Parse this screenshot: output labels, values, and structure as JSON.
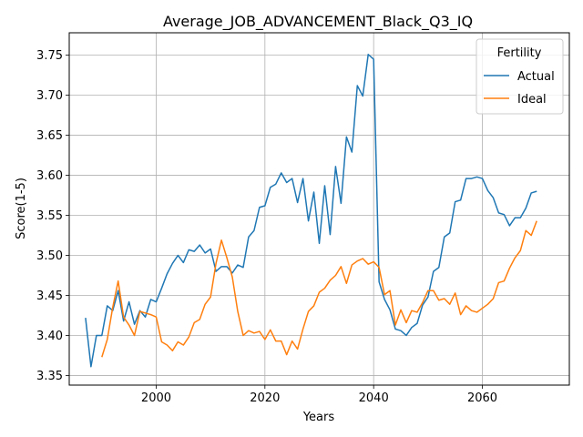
{
  "chart_data": {
    "type": "line",
    "title": "Average_JOB_ADVANCEMENT_Black_Q3_IQ",
    "xlabel": "Years",
    "ylabel": "Score(1-5)",
    "xlim": [
      1984,
      2076
    ],
    "ylim": [
      3.338,
      3.778
    ],
    "xticks": [
      2000,
      2020,
      2040,
      2060
    ],
    "yticks": [
      3.35,
      3.4,
      3.45,
      3.5,
      3.55,
      3.6,
      3.65,
      3.7,
      3.75
    ],
    "ytick_labels": [
      "3.35",
      "3.40",
      "3.45",
      "3.50",
      "3.55",
      "3.60",
      "3.65",
      "3.70",
      "3.75"
    ],
    "grid": true,
    "legend": {
      "title": "Fertility",
      "position": "top-right"
    },
    "series": [
      {
        "name": "Actual",
        "color": "#1f77b4",
        "x": [
          1987,
          1988,
          1989,
          1990,
          1991,
          1992,
          1993,
          1994,
          1995,
          1996,
          1997,
          1998,
          1999,
          2000,
          2001,
          2002,
          2003,
          2004,
          2005,
          2006,
          2007,
          2008,
          2009,
          2010,
          2011,
          2012,
          2013,
          2014,
          2015,
          2016,
          2017,
          2018,
          2019,
          2020,
          2021,
          2022,
          2023,
          2024,
          2025,
          2026,
          2027,
          2028,
          2029,
          2030,
          2031,
          2032,
          2033,
          2034,
          2035,
          2036,
          2037,
          2038,
          2039,
          2040,
          2041,
          2042,
          2043,
          2044,
          2045,
          2046,
          2047,
          2048,
          2049,
          2050,
          2051,
          2052,
          2053,
          2054,
          2055,
          2056,
          2057,
          2058,
          2059,
          2060,
          2061,
          2062,
          2063,
          2064,
          2065,
          2066,
          2067,
          2068,
          2069,
          2070
        ],
        "values": [
          3.422,
          3.361,
          3.4,
          3.4,
          3.437,
          3.431,
          3.456,
          3.418,
          3.442,
          3.414,
          3.431,
          3.423,
          3.445,
          3.442,
          3.459,
          3.477,
          3.49,
          3.5,
          3.491,
          3.507,
          3.505,
          3.513,
          3.503,
          3.508,
          3.48,
          3.486,
          3.486,
          3.478,
          3.488,
          3.485,
          3.523,
          3.531,
          3.56,
          3.562,
          3.585,
          3.589,
          3.603,
          3.591,
          3.596,
          3.566,
          3.596,
          3.543,
          3.579,
          3.515,
          3.587,
          3.526,
          3.611,
          3.565,
          3.648,
          3.629,
          3.712,
          3.699,
          3.751,
          3.745,
          3.467,
          3.445,
          3.432,
          3.408,
          3.406,
          3.4,
          3.41,
          3.415,
          3.438,
          3.448,
          3.48,
          3.485,
          3.523,
          3.528,
          3.567,
          3.569,
          3.596,
          3.596,
          3.598,
          3.596,
          3.581,
          3.572,
          3.553,
          3.551,
          3.537,
          3.547,
          3.547,
          3.559,
          3.578,
          3.58
        ]
      },
      {
        "name": "Ideal",
        "color": "#ff7f0e",
        "x": [
          1990,
          1991,
          1992,
          1993,
          1994,
          1995,
          1996,
          1997,
          1998,
          1999,
          2000,
          2001,
          2002,
          2003,
          2004,
          2005,
          2006,
          2007,
          2008,
          2009,
          2010,
          2011,
          2012,
          2013,
          2014,
          2015,
          2016,
          2017,
          2018,
          2019,
          2020,
          2021,
          2022,
          2023,
          2024,
          2025,
          2026,
          2027,
          2028,
          2029,
          2030,
          2031,
          2032,
          2033,
          2034,
          2035,
          2036,
          2037,
          2038,
          2039,
          2040,
          2041,
          2042,
          2043,
          2044,
          2045,
          2046,
          2047,
          2048,
          2049,
          2050,
          2051,
          2052,
          2053,
          2054,
          2055,
          2056,
          2057,
          2058,
          2059,
          2060,
          2061,
          2062,
          2063,
          2064,
          2065,
          2066,
          2067,
          2068,
          2069,
          2070
        ],
        "values": [
          3.373,
          3.395,
          3.435,
          3.468,
          3.423,
          3.413,
          3.4,
          3.43,
          3.428,
          3.426,
          3.423,
          3.392,
          3.388,
          3.381,
          3.392,
          3.388,
          3.398,
          3.416,
          3.42,
          3.439,
          3.448,
          3.49,
          3.519,
          3.497,
          3.473,
          3.43,
          3.4,
          3.406,
          3.403,
          3.405,
          3.395,
          3.407,
          3.393,
          3.393,
          3.376,
          3.393,
          3.383,
          3.408,
          3.43,
          3.437,
          3.454,
          3.459,
          3.469,
          3.475,
          3.486,
          3.465,
          3.488,
          3.493,
          3.496,
          3.489,
          3.492,
          3.485,
          3.451,
          3.456,
          3.413,
          3.432,
          3.416,
          3.431,
          3.429,
          3.441,
          3.456,
          3.456,
          3.444,
          3.446,
          3.439,
          3.453,
          3.426,
          3.437,
          3.431,
          3.429,
          3.434,
          3.439,
          3.446,
          3.466,
          3.468,
          3.484,
          3.497,
          3.506,
          3.531,
          3.525,
          3.543
        ]
      }
    ]
  }
}
